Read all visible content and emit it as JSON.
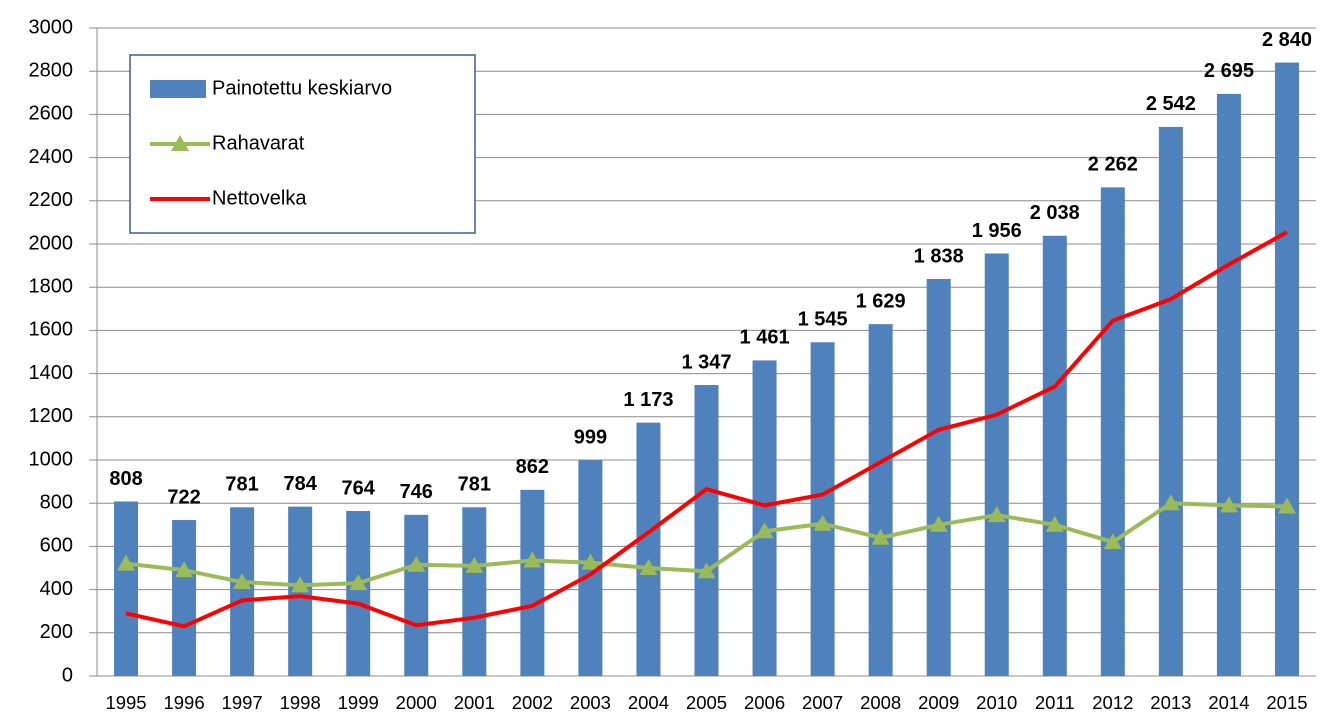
{
  "chart_data": {
    "type": "bar",
    "categories": [
      "1995",
      "1996",
      "1997",
      "1998",
      "1999",
      "2000",
      "2001",
      "2002",
      "2003",
      "2004",
      "2005",
      "2006",
      "2007",
      "2008",
      "2009",
      "2010",
      "2011",
      "2012",
      "2013",
      "2014",
      "2015"
    ],
    "series": [
      {
        "name": "Painotettu keskiarvo",
        "color": "#4f81bd",
        "type": "bar",
        "values": [
          808,
          722,
          781,
          784,
          764,
          746,
          781,
          862,
          999,
          1173,
          1347,
          1461,
          1545,
          1629,
          1838,
          1956,
          2038,
          2262,
          2542,
          2695,
          2840
        ],
        "value_labels": [
          "808",
          "722",
          "781",
          "784",
          "764",
          "746",
          "781",
          "862",
          "999",
          "1 173",
          "1 347",
          "1 461",
          "1 545",
          "1 629",
          "1 838",
          "1 956",
          "2 038",
          "2 262",
          "2 542",
          "2 695",
          "2 840"
        ]
      },
      {
        "name": "Rahavarat",
        "color": "#9bbb59",
        "type": "line",
        "marker": "triangle",
        "values": [
          520,
          490,
          435,
          420,
          430,
          515,
          510,
          535,
          525,
          500,
          485,
          670,
          705,
          640,
          700,
          745,
          700,
          620,
          800,
          790,
          785
        ]
      },
      {
        "name": "Nettovelka",
        "color": "#ff0000",
        "type": "line",
        "values": [
          290,
          230,
          350,
          370,
          335,
          235,
          270,
          325,
          470,
          665,
          865,
          790,
          840,
          990,
          1140,
          1210,
          1340,
          1645,
          1745,
          1905,
          2055
        ]
      }
    ],
    "ylim": [
      0,
      3000
    ],
    "yticks": [
      0,
      200,
      400,
      600,
      800,
      1000,
      1200,
      1400,
      1600,
      1800,
      2000,
      2200,
      2400,
      2600,
      2800,
      3000
    ],
    "grid": true,
    "legend": "upper left"
  }
}
